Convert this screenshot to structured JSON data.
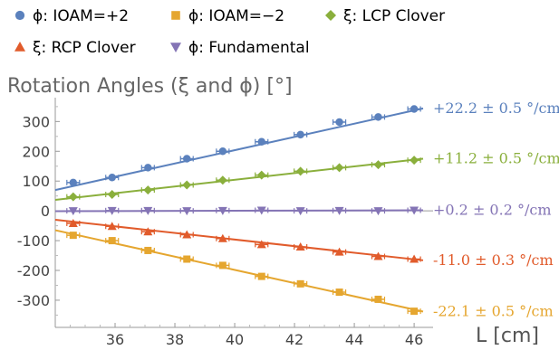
{
  "chart_data": {
    "type": "scatter",
    "title": "Rotation Angles (ξ and ϕ) [°]",
    "xlabel": "L [cm]",
    "ylabel": "",
    "xlim": [
      34,
      46.3
    ],
    "ylim": [
      -370,
      380
    ],
    "xticks": [
      36,
      38,
      40,
      42,
      44,
      46
    ],
    "yticks": [
      -300,
      -200,
      -100,
      0,
      100,
      200,
      300
    ],
    "grid": false,
    "legend_position": "top",
    "series": [
      {
        "name": "ϕ: IOAM=+2",
        "color": "#5b81bd",
        "marker": "circle",
        "x": [
          34.6,
          35.9,
          37.1,
          38.4,
          39.6,
          40.9,
          42.2,
          43.5,
          44.8,
          46.0
        ],
        "y": [
          95,
          112,
          145,
          175,
          200,
          232,
          256,
          298,
          315,
          342
        ],
        "fit": {
          "x": [
            34.0,
            46.3
          ],
          "y": [
            70,
            344
          ]
        },
        "fit_label": "+22.2 ± 0.5 °/cm"
      },
      {
        "name": "ξ: LCP Clover",
        "color": "#8aaf3c",
        "marker": "diamond",
        "x": [
          34.6,
          35.9,
          37.1,
          38.4,
          39.6,
          40.9,
          42.2,
          43.5,
          44.8,
          46.0
        ],
        "y": [
          47,
          55,
          70,
          87,
          103,
          120,
          133,
          145,
          155,
          170
        ],
        "fit": {
          "x": [
            34.0,
            46.3
          ],
          "y": [
            37,
            175
          ]
        },
        "fit_label": "+11.2 ± 0.5 °/cm"
      },
      {
        "name": "ϕ: Fundamental",
        "color": "#8474b5",
        "marker": "triangle-down",
        "x": [
          34.6,
          35.9,
          37.1,
          38.4,
          39.6,
          40.9,
          42.2,
          43.5,
          44.8,
          46.0
        ],
        "y": [
          0,
          1,
          1,
          0,
          1,
          2,
          0,
          1,
          0,
          2
        ],
        "fit": {
          "x": [
            34.0,
            46.3
          ],
          "y": [
            -1,
            2
          ]
        },
        "fit_label": "+0.2 ± 0.2 °/cm"
      },
      {
        "name": "ξ: RCP Clover",
        "color": "#e15b2b",
        "marker": "triangle-up",
        "x": [
          34.6,
          35.9,
          37.1,
          38.4,
          39.6,
          40.9,
          42.2,
          43.5,
          44.8,
          46.0
        ],
        "y": [
          -42,
          -52,
          -70,
          -80,
          -93,
          -113,
          -121,
          -138,
          -153,
          -162
        ],
        "fit": {
          "x": [
            34.0,
            46.3
          ],
          "y": [
            -30,
            -166
          ]
        },
        "fit_label": "-11.0 ± 0.3 °/cm"
      },
      {
        "name": "ϕ: IOAM=−2",
        "color": "#e5a62f",
        "marker": "square",
        "x": [
          34.6,
          35.9,
          37.1,
          38.4,
          39.6,
          40.9,
          42.2,
          43.5,
          44.8,
          46.0
        ],
        "y": [
          -82,
          -100,
          -133,
          -162,
          -183,
          -220,
          -245,
          -273,
          -297,
          -337
        ],
        "fit": {
          "x": [
            34.0,
            46.3
          ],
          "y": [
            -65,
            -338
          ]
        },
        "fit_label": "-22.1 ± 0.5 °/cm"
      }
    ],
    "legend_order": [
      0,
      4,
      1,
      3,
      2
    ]
  }
}
